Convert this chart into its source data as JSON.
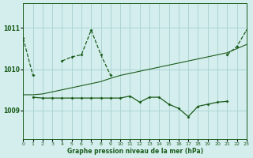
{
  "xlabel": "Graphe pression niveau de la mer (hPa)",
  "bg_color": "#d4eeee",
  "grid_color": "#add4d4",
  "line_color": "#1a5c1a",
  "xlim": [
    0,
    23
  ],
  "ylim": [
    1008.3,
    1011.6
  ],
  "yticks": [
    1009,
    1010,
    1011
  ],
  "xticks": [
    0,
    1,
    2,
    3,
    4,
    5,
    6,
    7,
    8,
    9,
    10,
    11,
    12,
    13,
    14,
    15,
    16,
    17,
    18,
    19,
    20,
    21,
    22,
    23
  ],
  "line_upper": {
    "segments": [
      [
        [
          0,
          1010.75
        ],
        [
          1,
          1009.85
        ]
      ],
      [
        [
          4,
          1010.2
        ],
        [
          5,
          1010.3
        ],
        [
          6,
          1010.35
        ],
        [
          7,
          1010.95
        ],
        [
          8,
          1010.35
        ],
        [
          9,
          1009.85
        ]
      ],
      [
        [
          21,
          1010.35
        ],
        [
          22,
          1010.55
        ],
        [
          23,
          1010.95
        ]
      ]
    ]
  },
  "line_trend": {
    "points": [
      [
        0,
        1009.38
      ],
      [
        1,
        1009.38
      ],
      [
        2,
        1009.4
      ],
      [
        3,
        1009.45
      ],
      [
        4,
        1009.5
      ],
      [
        5,
        1009.55
      ],
      [
        6,
        1009.6
      ],
      [
        7,
        1009.65
      ],
      [
        8,
        1009.7
      ],
      [
        9,
        1009.78
      ],
      [
        10,
        1009.85
      ],
      [
        11,
        1009.9
      ],
      [
        12,
        1009.95
      ],
      [
        13,
        1010.0
      ],
      [
        14,
        1010.05
      ],
      [
        15,
        1010.1
      ],
      [
        16,
        1010.15
      ],
      [
        17,
        1010.2
      ],
      [
        18,
        1010.25
      ],
      [
        19,
        1010.3
      ],
      [
        20,
        1010.35
      ],
      [
        21,
        1010.4
      ],
      [
        22,
        1010.5
      ],
      [
        23,
        1010.6
      ]
    ]
  },
  "line_lower": {
    "segments": [
      [
        [
          1,
          1009.32
        ],
        [
          2,
          1009.3
        ],
        [
          3,
          1009.3
        ],
        [
          4,
          1009.3
        ],
        [
          5,
          1009.3
        ],
        [
          6,
          1009.3
        ],
        [
          7,
          1009.3
        ],
        [
          8,
          1009.3
        ],
        [
          9,
          1009.3
        ],
        [
          10,
          1009.3
        ],
        [
          11,
          1009.35
        ],
        [
          12,
          1009.2
        ],
        [
          13,
          1009.32
        ],
        [
          14,
          1009.32
        ],
        [
          15,
          1009.15
        ],
        [
          16,
          1009.05
        ],
        [
          17,
          1008.85
        ],
        [
          18,
          1009.1
        ],
        [
          19,
          1009.15
        ],
        [
          20,
          1009.2
        ],
        [
          21,
          1009.22
        ]
      ]
    ]
  }
}
